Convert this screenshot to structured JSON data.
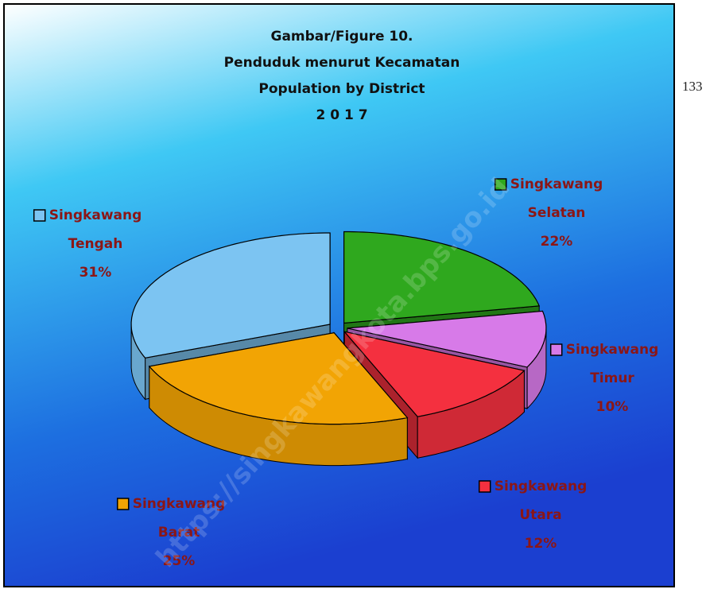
{
  "chart_data": {
    "type": "pie3d",
    "title_lines": [
      "Gambar/Figure 10.",
      "Penduduk menurut Kecamatan",
      "Population by District",
      "2 0 1 7"
    ],
    "categories": [
      "Singkawang Selatan",
      "Singkawang Timur",
      "Singkawang Utara",
      "Singkawang Barat",
      "Singkawang Tengah"
    ],
    "values": [
      22,
      10,
      12,
      25,
      31
    ],
    "value_labels": [
      "22%",
      "10%",
      "12%",
      "25%",
      "31%"
    ],
    "colors": [
      "#2fa81e",
      "#d77ae8",
      "#f4303f",
      "#f2a404",
      "#7cc4f2"
    ]
  },
  "page_number": "133",
  "watermark": "https://singkawangkota.bps.go.id"
}
